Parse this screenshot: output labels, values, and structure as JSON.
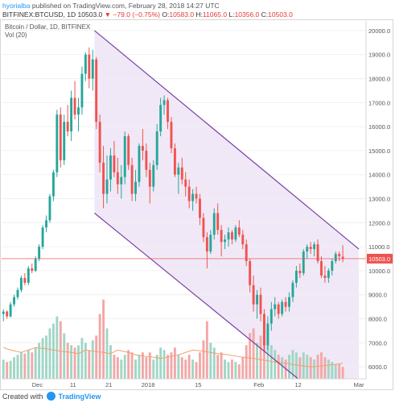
{
  "header": {
    "user": "hyorialba",
    "published": "published on TradingView.com, February 28, 2018 14:27 UTC",
    "symbol": "BITFINEX:BTCUSD, 1D",
    "last": "10503.0",
    "change": "▼ −79.0 (−0.75%)",
    "o_label": "O:",
    "o_value": "10583.0",
    "h_label": "H:",
    "h_value": "11065.0",
    "l_label": "L:",
    "l_value": "10356.0",
    "c_label": "C:",
    "c_value": "10503.0"
  },
  "legend": {
    "series": "Bitcoin / Dollar, 1D, BITFINEX",
    "volume": "Vol (20)"
  },
  "footer": {
    "created_with": "Created with",
    "brand": "TradingView"
  },
  "colors": {
    "up": "#26a69a",
    "down": "#ef5350",
    "up_vol": "#9fd6c5",
    "down_vol": "#f3a7a7",
    "channel_line": "#7b3fa5",
    "channel_fill": "#ede4f5",
    "price_line": "#ef5350",
    "price_label_bg": "#ef5350",
    "vol_ma": "#f0a070"
  },
  "chart_data": {
    "type": "candlestick",
    "y_axis": {
      "min": 5500,
      "max": 20400,
      "ticks": [
        6000,
        7000,
        8000,
        9000,
        10000,
        11000,
        12000,
        13000,
        14000,
        15000,
        16000,
        17000,
        18000,
        19000,
        20000
      ],
      "tick_labels": [
        "6000.0",
        "7000.0",
        "8000.0",
        "9000.0",
        "10000.0",
        "11000.0",
        "12000.0",
        "13000.0",
        "14000.0",
        "15000.0",
        "16000.0",
        "17000.0",
        "18000.0",
        "19000.0",
        "20000.0"
      ],
      "position": "right"
    },
    "x_axis": {
      "start_date": "2017-11-21",
      "end_date": "2018-02-28",
      "tick_labels": [
        "Dec",
        "11",
        "21",
        "2018",
        "15",
        "Feb",
        "12",
        "Mar"
      ],
      "tick_dates": [
        "2017-12-01",
        "2017-12-11",
        "2017-12-21",
        "2018-01-01",
        "2018-01-15",
        "2018-02-01",
        "2018-02-12",
        "2018-03-01"
      ]
    },
    "current_price": 10503.0,
    "current_price_label": "10503.0",
    "channel": {
      "upper": [
        [
          "2017-12-17",
          20000
        ],
        [
          "2018-03-01",
          10900
        ]
      ],
      "lower": [
        [
          "2017-12-17",
          12400
        ],
        [
          "2018-02-12",
          5500
        ]
      ]
    },
    "volume_ma": [
      6800,
      6700,
      6600,
      6700,
      6800,
      6750,
      6700,
      6650,
      6600,
      6550,
      6700,
      6650,
      6600,
      6550,
      6700,
      6600,
      6500,
      6450,
      6400,
      6350,
      6400,
      6500,
      6600,
      6700,
      6650,
      6600,
      6550,
      6500,
      6450,
      6400,
      6350,
      6300,
      6250,
      6200,
      6150,
      6100,
      6050,
      6000,
      6020,
      6050,
      6100,
      6150
    ],
    "ohlc": [
      [
        8200,
        8400,
        7900,
        8300,
        6300
      ],
      [
        8300,
        8350,
        8000,
        8100,
        6200
      ],
      [
        8100,
        8700,
        8050,
        8600,
        6250
      ],
      [
        8600,
        9000,
        8500,
        8900,
        6400
      ],
      [
        8900,
        9300,
        8800,
        9200,
        6500
      ],
      [
        9200,
        9800,
        9100,
        9700,
        6600
      ],
      [
        9700,
        9900,
        9400,
        9500,
        6550
      ],
      [
        9500,
        10200,
        9400,
        10100,
        6700
      ],
      [
        10100,
        10300,
        9900,
        10000,
        6600
      ],
      [
        10000,
        10600,
        9950,
        10500,
        6800
      ],
      [
        10500,
        11100,
        10400,
        11000,
        7000
      ],
      [
        11000,
        11900,
        10900,
        11800,
        7200
      ],
      [
        11800,
        12300,
        11600,
        12100,
        7300
      ],
      [
        12100,
        13200,
        12000,
        13100,
        7600
      ],
      [
        13100,
        14200,
        12900,
        14100,
        7800
      ],
      [
        14100,
        16700,
        13900,
        16500,
        8100
      ],
      [
        16500,
        16800,
        14300,
        14600,
        7900
      ],
      [
        14600,
        16500,
        14400,
        16200,
        7400
      ],
      [
        16200,
        16900,
        15600,
        15800,
        7000
      ],
      [
        15800,
        17500,
        15400,
        17200,
        6900
      ],
      [
        17200,
        17900,
        16300,
        16500,
        6800
      ],
      [
        16500,
        17200,
        15800,
        16800,
        6900
      ],
      [
        16800,
        18500,
        16500,
        18200,
        7200
      ],
      [
        18200,
        19100,
        17900,
        19000,
        7000
      ],
      [
        19000,
        19300,
        17600,
        18000,
        6700
      ],
      [
        18000,
        19200,
        17500,
        18800,
        7100
      ],
      [
        18800,
        18900,
        15900,
        16200,
        7300
      ],
      [
        16200,
        16500,
        14100,
        14500,
        8200
      ],
      [
        14500,
        15200,
        12600,
        13200,
        8800
      ],
      [
        13200,
        14800,
        12800,
        13800,
        7600
      ],
      [
        13800,
        15100,
        13300,
        14800,
        6900
      ],
      [
        14800,
        15400,
        13900,
        14100,
        6500
      ],
      [
        14100,
        14700,
        13200,
        13600,
        6400
      ],
      [
        13600,
        14400,
        13000,
        13900,
        6300
      ],
      [
        13900,
        15800,
        13600,
        15600,
        6500
      ],
      [
        15600,
        15700,
        14200,
        14400,
        6700
      ],
      [
        14400,
        14700,
        12900,
        13200,
        6600
      ],
      [
        13200,
        14200,
        12900,
        13700,
        6300
      ],
      [
        13700,
        15300,
        13500,
        15200,
        6500
      ],
      [
        15200,
        15900,
        14600,
        15000,
        6600
      ],
      [
        15000,
        15300,
        13900,
        14200,
        6400
      ],
      [
        14200,
        14500,
        12800,
        13500,
        6600
      ],
      [
        13500,
        14600,
        13300,
        14400,
        6300
      ],
      [
        14400,
        16100,
        14200,
        15800,
        6500
      ],
      [
        15800,
        17200,
        15600,
        16900,
        6800
      ],
      [
        16900,
        17300,
        16500,
        17100,
        6700
      ],
      [
        17100,
        17200,
        15900,
        16200,
        6500
      ],
      [
        16200,
        16400,
        14900,
        15100,
        6600
      ],
      [
        15100,
        15300,
        13900,
        14000,
        6800
      ],
      [
        14000,
        14500,
        13200,
        14300,
        6500
      ],
      [
        14300,
        14700,
        13600,
        13800,
        6400
      ],
      [
        13800,
        14100,
        13100,
        13500,
        6300
      ],
      [
        13500,
        13800,
        12600,
        12900,
        6500
      ],
      [
        12900,
        13400,
        12500,
        13200,
        6300
      ],
      [
        13200,
        13500,
        12800,
        13000,
        6200
      ],
      [
        13000,
        13200,
        11900,
        12200,
        6600
      ],
      [
        12200,
        12400,
        11200,
        11400,
        7100
      ],
      [
        11400,
        11600,
        10100,
        10800,
        7900
      ],
      [
        10800,
        11700,
        10700,
        11500,
        7000
      ],
      [
        11500,
        12600,
        11300,
        12400,
        6800
      ],
      [
        12400,
        12800,
        11500,
        11700,
        6500
      ],
      [
        11700,
        11900,
        10600,
        11200,
        6600
      ],
      [
        11200,
        11500,
        10900,
        11300,
        6300
      ],
      [
        11300,
        11800,
        11000,
        11600,
        6200
      ],
      [
        11600,
        11700,
        11100,
        11300,
        6300
      ],
      [
        11300,
        11900,
        11200,
        11800,
        6200
      ],
      [
        11800,
        12100,
        11400,
        11500,
        6100
      ],
      [
        11500,
        11700,
        10900,
        11100,
        6400
      ],
      [
        11100,
        11300,
        10200,
        10400,
        6900
      ],
      [
        10400,
        10500,
        9100,
        9400,
        7400
      ],
      [
        9400,
        9800,
        8300,
        8600,
        7600
      ],
      [
        8600,
        9200,
        8000,
        9000,
        7000
      ],
      [
        9000,
        9300,
        7900,
        8200,
        7300
      ],
      [
        8200,
        8400,
        6600,
        6900,
        8000
      ],
      [
        6900,
        8100,
        6700,
        7800,
        7600
      ],
      [
        7800,
        8700,
        7500,
        8400,
        6900
      ],
      [
        8400,
        8900,
        8100,
        8600,
        6700
      ],
      [
        8600,
        8700,
        8000,
        8200,
        6500
      ],
      [
        8200,
        8800,
        8100,
        8700,
        6400
      ],
      [
        8700,
        8900,
        8300,
        8500,
        6300
      ],
      [
        8500,
        9100,
        8300,
        8900,
        6500
      ],
      [
        8900,
        9600,
        8700,
        9500,
        6700
      ],
      [
        9500,
        10200,
        9300,
        10000,
        6600
      ],
      [
        10000,
        10300,
        9700,
        9900,
        6400
      ],
      [
        9900,
        10900,
        9800,
        10800,
        6600
      ],
      [
        10800,
        11100,
        10500,
        11000,
        6500
      ],
      [
        11000,
        11200,
        10700,
        10900,
        6400
      ],
      [
        10900,
        11200,
        10600,
        11100,
        6300
      ],
      [
        11100,
        11300,
        10300,
        10400,
        6500
      ],
      [
        10400,
        10600,
        9700,
        9800,
        6600
      ],
      [
        9800,
        10200,
        9500,
        9700,
        6400
      ],
      [
        9700,
        10100,
        9500,
        10000,
        6300
      ],
      [
        10000,
        10500,
        9800,
        10400,
        6200
      ],
      [
        10400,
        10800,
        10300,
        10700,
        6100
      ],
      [
        10700,
        10800,
        10400,
        10600,
        6100
      ],
      [
        10583,
        11065,
        10356,
        10503,
        6000
      ]
    ]
  }
}
